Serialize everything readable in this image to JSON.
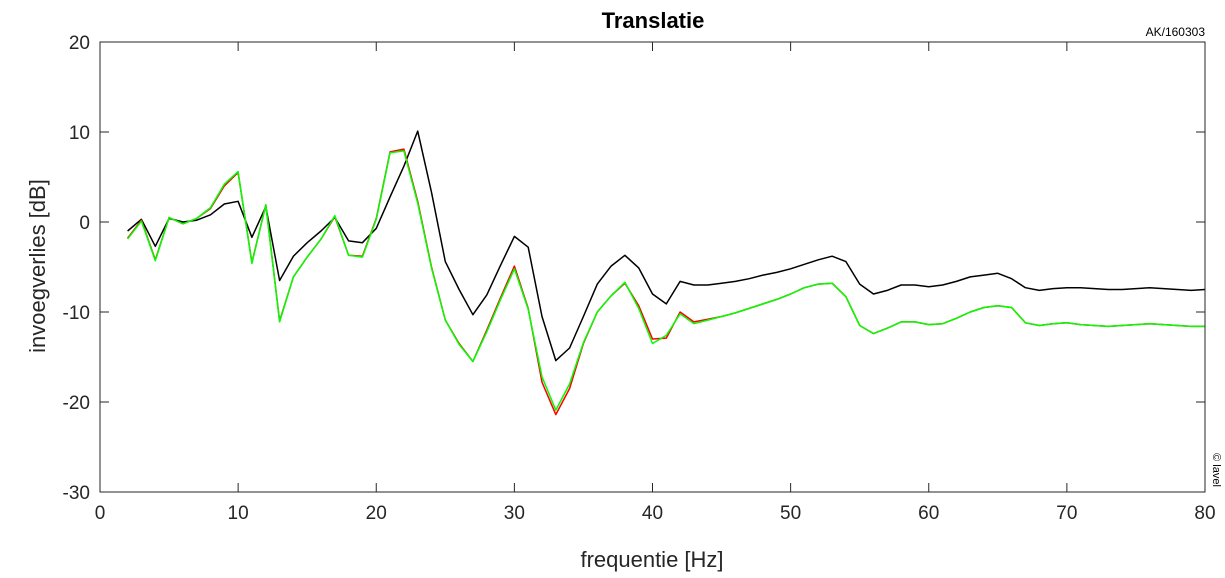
{
  "chart_data": {
    "type": "line",
    "title": "Translatie",
    "xlabel": "frequentie [Hz]",
    "ylabel": "invoegverlies [dB]",
    "xlim": [
      0,
      80
    ],
    "ylim": [
      -30,
      20
    ],
    "xticks": [
      0,
      10,
      20,
      30,
      40,
      50,
      60,
      70,
      80
    ],
    "yticks": [
      -30,
      -20,
      -10,
      0,
      10,
      20
    ],
    "grid": false,
    "annotations": {
      "top_right": "AK/160303",
      "side": "© lavel"
    },
    "series": [
      {
        "color": "#000000",
        "x": [
          2,
          3,
          4,
          5,
          6,
          7,
          8,
          9,
          10,
          11,
          12,
          13,
          14,
          15,
          16,
          17,
          18,
          19,
          20,
          21,
          22,
          23,
          24,
          25,
          26,
          27,
          28,
          29,
          30,
          31,
          32,
          33,
          34,
          35,
          36,
          37,
          38,
          39,
          40,
          41,
          42,
          43,
          44,
          45,
          46,
          47,
          48,
          49,
          50,
          51,
          52,
          53,
          54,
          55,
          56,
          57,
          58,
          59,
          60,
          61,
          62,
          63,
          64,
          65,
          66,
          67,
          68,
          69,
          70,
          71,
          72,
          73,
          74,
          75,
          76,
          77,
          78,
          79,
          80
        ],
        "y": [
          -1,
          0.3,
          -2.7,
          0.4,
          0,
          0.2,
          0.8,
          2,
          2.3,
          -1.7,
          1.7,
          -6.5,
          -3.8,
          -2.3,
          -1,
          0.5,
          -2.1,
          -2.3,
          -0.7,
          2.8,
          6.2,
          10.1,
          3.3,
          -4.4,
          -7.5,
          -10.3,
          -8.1,
          -4.8,
          -1.6,
          -2.8,
          -10.5,
          -15.4,
          -14,
          -10.5,
          -6.9,
          -4.9,
          -3.7,
          -5.1,
          -8,
          -9.1,
          -6.6,
          -7,
          -7,
          -6.8,
          -6.6,
          -6.3,
          -5.9,
          -5.6,
          -5.2,
          -4.7,
          -4.2,
          -3.8,
          -4.4,
          -6.9,
          -8,
          -7.6,
          -7,
          -7,
          -7.2,
          -7,
          -6.6,
          -6.1,
          -5.9,
          -5.7,
          -6.3,
          -7.3,
          -7.6,
          -7.4,
          -7.3,
          -7.3,
          -7.4,
          -7.5,
          -7.5,
          -7.4,
          -7.3,
          -7.4,
          -7.5,
          -7.6,
          -7.5
        ]
      },
      {
        "color": "#ff0000",
        "x": [
          2,
          3,
          4,
          5,
          6,
          7,
          8,
          9,
          10,
          11,
          12,
          13,
          14,
          15,
          16,
          17,
          18,
          19,
          20,
          21,
          22,
          23,
          24,
          25,
          26,
          27,
          28,
          29,
          30,
          31,
          32,
          33,
          34,
          35,
          36,
          37,
          38,
          39,
          40,
          41,
          42,
          43,
          44,
          45,
          46,
          47,
          48,
          49,
          50,
          51,
          52,
          53,
          54,
          55,
          56,
          57,
          58,
          59,
          60,
          61,
          62,
          63,
          64,
          65,
          66,
          67,
          68,
          69,
          70,
          71,
          72,
          73,
          74,
          75,
          76,
          77,
          78,
          79,
          80
        ],
        "y": [
          -1.8,
          0.2,
          -4.2,
          0.5,
          -0.2,
          0.4,
          1.5,
          4,
          5.5,
          -4.5,
          1.9,
          -11,
          -6.1,
          -3.9,
          -1.9,
          0.6,
          -3.7,
          -3.8,
          0.4,
          7.8,
          8.1,
          2.3,
          -5,
          -10.9,
          -13.5,
          -15.5,
          -12,
          -8.4,
          -4.9,
          -9.6,
          -17.8,
          -21.4,
          -18.5,
          -13.5,
          -10,
          -8.2,
          -6.8,
          -9.3,
          -13,
          -12.9,
          -10,
          -11.1,
          -10.8,
          -10.5,
          -10.1,
          -9.6,
          -9.1,
          -8.6,
          -8,
          -7.3,
          -6.9,
          -6.8,
          -8.3,
          -11.5,
          -12.4,
          -11.8,
          -11.1,
          -11.1,
          -11.4,
          -11.3,
          -10.7,
          -10,
          -9.5,
          -9.3,
          -9.5,
          -11.2,
          -11.5,
          -11.3,
          -11.2,
          -11.4,
          -11.5,
          -11.6,
          -11.5,
          -11.4,
          -11.3,
          -11.4,
          -11.5,
          -11.6,
          -11.6
        ]
      },
      {
        "color": "#00ff00",
        "x": [
          2,
          3,
          4,
          5,
          6,
          7,
          8,
          9,
          10,
          11,
          12,
          13,
          14,
          15,
          16,
          17,
          18,
          19,
          20,
          21,
          22,
          23,
          24,
          25,
          26,
          27,
          28,
          29,
          30,
          31,
          32,
          33,
          34,
          35,
          36,
          37,
          38,
          39,
          40,
          41,
          42,
          43,
          44,
          45,
          46,
          47,
          48,
          49,
          50,
          51,
          52,
          53,
          54,
          55,
          56,
          57,
          58,
          59,
          60,
          61,
          62,
          63,
          64,
          65,
          66,
          67,
          68,
          69,
          70,
          71,
          72,
          73,
          74,
          75,
          76,
          77,
          78,
          79,
          80
        ],
        "y": [
          -1.9,
          0.1,
          -4.3,
          0.5,
          -0.2,
          0.4,
          1.6,
          4.2,
          5.6,
          -4.6,
          1.9,
          -11.1,
          -6.1,
          -3.9,
          -1.9,
          0.7,
          -3.7,
          -3.9,
          0.3,
          7.7,
          7.9,
          2.1,
          -5.1,
          -10.9,
          -13.6,
          -15.5,
          -12.2,
          -8.6,
          -5.2,
          -9.7,
          -17.2,
          -20.9,
          -18,
          -13.4,
          -10,
          -8.2,
          -6.7,
          -9.6,
          -13.5,
          -12.6,
          -10.2,
          -11.3,
          -10.9,
          -10.5,
          -10.1,
          -9.6,
          -9.1,
          -8.6,
          -8,
          -7.3,
          -6.9,
          -6.8,
          -8.3,
          -11.5,
          -12.4,
          -11.8,
          -11.1,
          -11.1,
          -11.4,
          -11.3,
          -10.7,
          -10,
          -9.5,
          -9.3,
          -9.5,
          -11.2,
          -11.5,
          -11.3,
          -11.2,
          -11.4,
          -11.5,
          -11.6,
          -11.5,
          -11.4,
          -11.3,
          -11.4,
          -11.5,
          -11.6,
          -11.6
        ]
      }
    ]
  }
}
